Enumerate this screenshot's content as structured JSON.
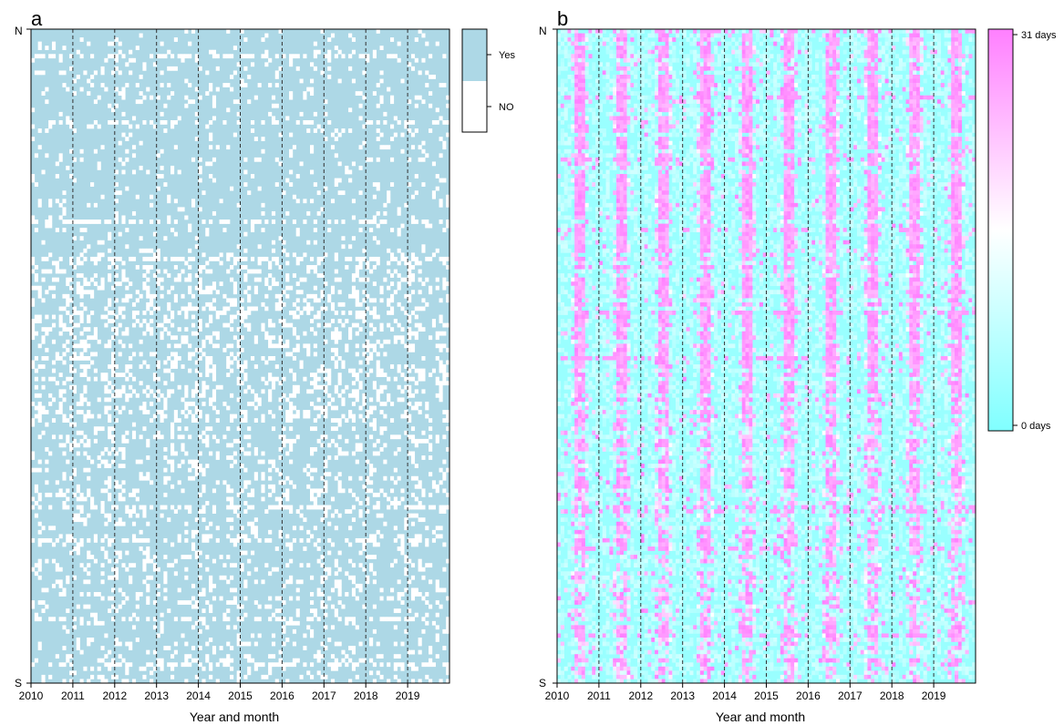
{
  "figure": {
    "panels": [
      {
        "letter": "a",
        "y_top_label": "N",
        "y_bottom_label": "S",
        "xlabel": "Year and month",
        "legend": {
          "labels": [
            "Yes",
            "NO"
          ]
        }
      },
      {
        "letter": "b",
        "y_top_label": "N",
        "y_bottom_label": "S",
        "xlabel": "Year and month",
        "legend": {
          "labels": [
            "31 days",
            "0 days"
          ]
        }
      }
    ]
  },
  "chart_data": [
    {
      "type": "heatmap",
      "panel": "a",
      "xlabel": "Year and month",
      "x_ticks": [
        "2010",
        "2011",
        "2012",
        "2013",
        "2014",
        "2015",
        "2016",
        "2017",
        "2018",
        "2019"
      ],
      "x_range": [
        "2010-01",
        "2019-12"
      ],
      "months": 120,
      "y_axis": {
        "top": "N",
        "bottom": "S"
      },
      "rows": 158,
      "values": [
        "Yes",
        "NO"
      ],
      "colors": {
        "Yes": "#add8e6",
        "NO": "#ffffff"
      },
      "year_separators": "dashed lines at each year boundary",
      "pattern": "mostly Yes; NO cells scattered, sparse in northern rows, denser in the middle band, moderate in southern rows",
      "legend_position": "right"
    },
    {
      "type": "heatmap",
      "panel": "b",
      "xlabel": "Year and month",
      "x_ticks": [
        "2010",
        "2011",
        "2012",
        "2013",
        "2014",
        "2015",
        "2016",
        "2017",
        "2018",
        "2019"
      ],
      "x_range": [
        "2010-01",
        "2019-12"
      ],
      "months": 120,
      "y_axis": {
        "top": "N",
        "bottom": "S"
      },
      "rows": 158,
      "value_range": [
        0,
        31
      ],
      "value_unit": "days",
      "colorscale": [
        "#80ffff",
        "#ffffff",
        "#ff80ff"
      ],
      "year_separators": "dashed lines at each year boundary",
      "pattern": "seasonal columns near 31 days around mid-year (June-August) in every year; background near 0 days",
      "legend_position": "right"
    }
  ]
}
